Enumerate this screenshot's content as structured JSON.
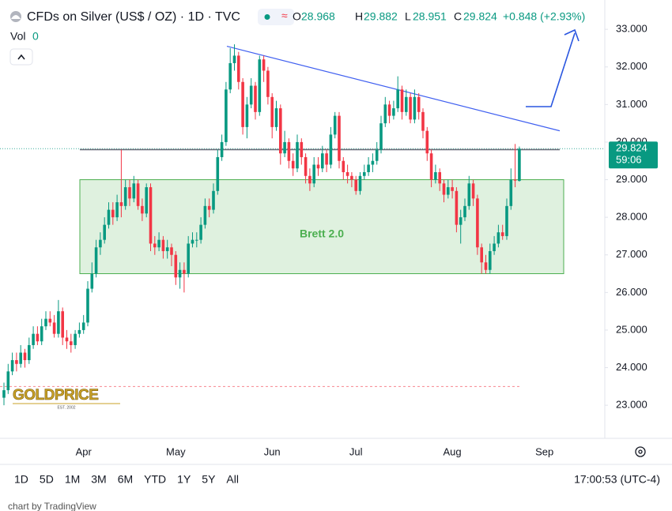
{
  "header": {
    "symbol": "CFDs on Silver (US$ / OZ) · 1D · TVC",
    "o": "O",
    "h": "H",
    "l": "L",
    "c": "C",
    "change": "+0.848 (+2.93%)",
    "vol": "Vol",
    "vol_value": 0
  },
  "chart_data": {
    "type": "candlestick",
    "categories": [
      null,
      null,
      null,
      null,
      null,
      null,
      null,
      null,
      null,
      null,
      null,
      null,
      null,
      null,
      null,
      null,
      null,
      null,
      null,
      "Apr",
      null,
      null,
      null,
      null,
      null,
      null,
      null,
      null,
      null,
      null,
      null,
      null,
      null,
      null,
      null,
      null,
      null,
      null,
      null,
      null,
      null,
      "May",
      null,
      null,
      null,
      null,
      null,
      null,
      null,
      null,
      null,
      null,
      null,
      null,
      null,
      null,
      null,
      null,
      null,
      null,
      null,
      null,
      null,
      null,
      "Jun",
      null,
      null,
      null,
      null,
      null,
      null,
      null,
      null,
      null,
      null,
      null,
      null,
      null,
      null,
      null,
      null,
      null,
      null,
      null,
      "Jul",
      null,
      null,
      null,
      null,
      null,
      null,
      null,
      null,
      null,
      null,
      null,
      null,
      null,
      null,
      null,
      null,
      null,
      null,
      null,
      null,
      null,
      null,
      "Aug",
      null,
      null,
      null,
      null,
      null,
      null,
      null,
      null,
      null,
      null,
      null,
      null,
      null,
      null,
      null,
      null,
      null,
      null,
      null,
      null,
      null,
      "Sep"
    ],
    "open": [
      23.2,
      23.4,
      23.9,
      24.2,
      24.1,
      24.4,
      24.2,
      24.6,
      24.9,
      24.7,
      25.1,
      25.3,
      25.2,
      24.9,
      25.5,
      24.8,
      24.7,
      24.6,
      24.9,
      25.0,
      25.2,
      26.1,
      26.5,
      27.2,
      27.4,
      27.8,
      28.2,
      28.0,
      28.4,
      28.3,
      28.8,
      28.5,
      28.9,
      28.3,
      28.1,
      28.8,
      27.3,
      27.2,
      27.4,
      27.1,
      27.2,
      27.0,
      26.4,
      26.6,
      26.5,
      27.3,
      27.4,
      27.4,
      27.8,
      28.3,
      28.2,
      28.7,
      29.6,
      30.0,
      31.4,
      32.1,
      32.3,
      31.6,
      30.4,
      31.0,
      31.5,
      30.8,
      32.2,
      31.9,
      31.2,
      30.4,
      30.9,
      29.7,
      30.0,
      29.5,
      29.3,
      30.0,
      29.6,
      29.1,
      28.9,
      29.4,
      29.3,
      29.7,
      29.4,
      30.2,
      30.7,
      29.5,
      29.2,
      29.1,
      29.0,
      28.7,
      29.1,
      29.2,
      29.4,
      29.5,
      29.8,
      30.5,
      31.0,
      30.7,
      30.9,
      31.4,
      30.8,
      31.2,
      30.6,
      31.2,
      30.8,
      30.3,
      29.7,
      29.0,
      29.2,
      28.9,
      28.6,
      28.8,
      28.7,
      27.8,
      28.0,
      28.3,
      28.9,
      28.5,
      27.2,
      26.8,
      26.6,
      27.1,
      27.3,
      27.6,
      27.5,
      28.3,
      29.0,
      28.968,
      null,
      null,
      null,
      null,
      null,
      null
    ],
    "high": [
      23.6,
      24.1,
      24.4,
      24.4,
      24.6,
      24.5,
      24.8,
      25.1,
      25.1,
      25.3,
      25.5,
      25.5,
      25.4,
      25.8,
      25.6,
      25.0,
      24.9,
      25.0,
      25.2,
      25.4,
      26.3,
      26.8,
      27.4,
      27.6,
      28.0,
      28.4,
      28.4,
      28.6,
      29.8,
      29.0,
      29.0,
      29.1,
      29.0,
      28.5,
      28.9,
      28.9,
      27.5,
      27.6,
      27.5,
      27.4,
      27.3,
      27.1,
      26.8,
      26.8,
      27.5,
      27.6,
      27.6,
      28.0,
      28.5,
      28.5,
      28.9,
      29.8,
      30.2,
      31.6,
      32.5,
      32.6,
      32.4,
      31.7,
      31.2,
      31.7,
      31.6,
      32.3,
      32.3,
      32.0,
      31.3,
      31.1,
      31.0,
      30.3,
      30.1,
      29.7,
      30.2,
      30.1,
      29.7,
      29.3,
      29.6,
      29.6,
      29.9,
      29.8,
      30.4,
      30.8,
      30.8,
      29.6,
      29.4,
      29.2,
      29.1,
      29.2,
      29.4,
      29.6,
      29.7,
      30.0,
      30.7,
      31.2,
      31.1,
      31.1,
      31.75,
      31.5,
      31.4,
      31.3,
      31.4,
      31.3,
      30.9,
      30.4,
      29.8,
      29.4,
      29.3,
      29.0,
      29.0,
      29.0,
      28.8,
      28.2,
      28.5,
      29.1,
      29.0,
      28.6,
      27.3,
      27.0,
      27.3,
      27.5,
      27.8,
      27.8,
      28.5,
      29.3,
      29.95,
      29.882,
      null,
      null,
      null,
      null,
      null,
      null
    ],
    "low": [
      23.0,
      23.3,
      23.8,
      23.9,
      24.0,
      24.0,
      24.1,
      24.5,
      24.6,
      24.6,
      25.0,
      25.1,
      24.8,
      24.8,
      24.6,
      24.5,
      24.4,
      24.5,
      24.8,
      24.9,
      25.1,
      26.0,
      26.4,
      27.0,
      27.3,
      27.7,
      27.8,
      27.9,
      28.0,
      28.2,
      28.3,
      28.4,
      28.2,
      27.9,
      28.0,
      27.1,
      27.0,
      27.1,
      26.9,
      26.9,
      26.7,
      26.2,
      26.1,
      26.0,
      26.4,
      27.2,
      27.2,
      27.3,
      27.7,
      28.0,
      28.1,
      28.6,
      29.5,
      29.9,
      31.3,
      31.9,
      31.4,
      30.2,
      30.1,
      30.9,
      30.6,
      30.7,
      31.6,
      31.0,
      30.1,
      30.3,
      29.4,
      29.6,
      29.3,
      29.1,
      29.2,
      29.4,
      28.9,
      28.7,
      28.8,
      29.1,
      29.2,
      29.2,
      29.3,
      30.1,
      29.3,
      29.0,
      28.9,
      28.8,
      28.6,
      28.6,
      29.0,
      29.1,
      29.2,
      29.4,
      29.7,
      30.4,
      30.5,
      30.6,
      30.8,
      30.6,
      30.7,
      30.5,
      30.5,
      30.6,
      30.1,
      29.5,
      28.8,
      28.9,
      28.7,
      28.4,
      28.5,
      28.5,
      27.6,
      27.3,
      27.9,
      28.2,
      28.3,
      27.0,
      26.5,
      26.5,
      26.5,
      27.0,
      27.2,
      27.4,
      27.4,
      28.2,
      28.8,
      28.951,
      null,
      null,
      null,
      null,
      null,
      null
    ],
    "close": [
      23.4,
      23.9,
      24.2,
      24.1,
      24.4,
      24.2,
      24.6,
      24.9,
      24.7,
      25.1,
      25.3,
      25.2,
      24.9,
      25.5,
      24.8,
      24.7,
      24.6,
      24.9,
      25.0,
      25.2,
      26.1,
      26.5,
      27.2,
      27.4,
      27.8,
      28.2,
      28.0,
      28.4,
      28.3,
      28.8,
      28.5,
      28.9,
      28.3,
      28.1,
      28.8,
      27.3,
      27.2,
      27.4,
      27.1,
      27.2,
      27.0,
      26.4,
      26.6,
      26.5,
      27.3,
      27.4,
      27.4,
      27.8,
      28.3,
      28.2,
      28.7,
      29.6,
      30.0,
      31.4,
      32.1,
      32.3,
      31.6,
      30.4,
      31.0,
      31.5,
      30.8,
      32.2,
      31.9,
      31.2,
      30.4,
      30.9,
      29.7,
      30.0,
      29.5,
      29.3,
      30.0,
      29.6,
      29.1,
      28.9,
      29.4,
      29.3,
      29.7,
      29.4,
      30.2,
      30.7,
      29.5,
      29.2,
      29.1,
      29.0,
      28.7,
      29.1,
      29.2,
      29.4,
      29.5,
      29.8,
      30.5,
      31.0,
      30.7,
      30.9,
      31.4,
      30.8,
      31.2,
      30.6,
      31.2,
      30.8,
      30.3,
      29.7,
      29.0,
      29.2,
      28.9,
      28.6,
      28.8,
      28.7,
      27.8,
      28.0,
      28.3,
      28.9,
      28.5,
      27.2,
      26.8,
      26.6,
      27.1,
      27.3,
      27.6,
      27.5,
      28.3,
      29.0,
      28.976,
      29.824,
      null,
      null,
      null,
      null,
      null,
      null
    ],
    "up_color": "#089981",
    "down_color": "#f23645",
    "ylim": [
      22.12,
      33.78
    ],
    "yticks": [
      {
        "value": 23,
        "label": "23.000"
      },
      {
        "value": 24,
        "label": "24.000"
      },
      {
        "value": 25,
        "label": "25.000"
      },
      {
        "value": 26,
        "label": "26.000"
      },
      {
        "value": 27,
        "label": "27.000"
      },
      {
        "value": 28,
        "label": "28.000"
      },
      {
        "value": 29,
        "label": "29.000"
      },
      {
        "value": 30,
        "label": "30.000"
      },
      {
        "value": 31,
        "label": "31.000"
      },
      {
        "value": 32,
        "label": "32.000"
      },
      {
        "value": 33,
        "label": "33.000"
      }
    ],
    "grid": false,
    "annotations": {
      "box": {
        "label": "Brett 2.0",
        "low": 26.5,
        "high": 29.0,
        "color": "#4caf50"
      },
      "trendline": {
        "start": 32.55,
        "end": 30.3,
        "color": "#3f5ff0"
      },
      "level": 29.8,
      "support": 23.5,
      "countdown": "59:06"
    }
  },
  "logo": {
    "name": "GOLDPRICE",
    "est": "EST. 2002"
  },
  "toolbar": {
    "ranges": [
      "1D",
      "5D",
      "1M",
      "3M",
      "6M",
      "YTD",
      "1Y",
      "5Y",
      "All"
    ],
    "time": "17:00:53 (UTC-4)"
  },
  "footer": "chart by TradingView"
}
